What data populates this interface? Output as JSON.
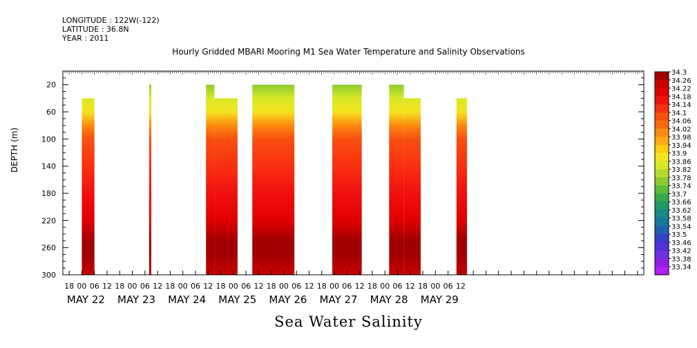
{
  "header": {
    "longitude": "LONGITUDE : 122W(-122)",
    "latitude": "LATITUDE : 36.8N",
    "year": "YEAR : 2011"
  },
  "title": "Hourly Gridded MBARI Mooring M1 Sea Water Temperature and Salinity Observations",
  "variable_label": "Sea Water Salinity",
  "chart_data": {
    "type": "heatmap",
    "title": "Hourly Gridded MBARI Mooring M1 Sea Water Temperature and Salinity Observations",
    "ylabel": "DEPTH (m)",
    "xlabel": "",
    "variable": "Sea Water Salinity",
    "y_range": [
      300,
      0
    ],
    "y_ticks": [
      20,
      60,
      100,
      140,
      180,
      220,
      260,
      300
    ],
    "x_range_hours": [
      -9,
      267
    ],
    "x_hour_ticks": [
      "18",
      "00",
      "06",
      "12",
      "18",
      "00",
      "06",
      "12",
      "18",
      "00",
      "06",
      "12",
      "18",
      "00",
      "06",
      "12",
      "18",
      "00",
      "06",
      "12",
      "18",
      "00",
      "06",
      "12",
      "18",
      "00",
      "06",
      "12",
      "18",
      "00",
      "06",
      "12"
    ],
    "x_day_labels": [
      "MAY 22",
      "MAY 23",
      "MAY 24",
      "MAY 25",
      "MAY 26",
      "MAY 27",
      "MAY 28",
      "MAY 29"
    ],
    "colorbar": {
      "levels": [
        "34.3",
        "34.26",
        "34.22",
        "34.18",
        "34.14",
        "34.1",
        "34.06",
        "34.02",
        "33.98",
        "33.94",
        "33.9",
        "33.86",
        "33.82",
        "33.78",
        "33.74",
        "33.7",
        "33.66",
        "33.62",
        "33.58",
        "33.54",
        "33.5",
        "33.46",
        "33.42",
        "33.38",
        "33.34"
      ],
      "colors": [
        "#a00000",
        "#c80000",
        "#e00000",
        "#f01010",
        "#f83010",
        "#f85010",
        "#fa6a10",
        "#fc8a10",
        "#fdab10",
        "#fccc10",
        "#f4e420",
        "#d8e828",
        "#b4dc30",
        "#8ccc30",
        "#5cbc38",
        "#38a848",
        "#209868",
        "#188888",
        "#187898",
        "#2060b0",
        "#3040c8",
        "#5030d8",
        "#7030e0",
        "#9020e8",
        "#b020f0"
      ]
    },
    "segments": [
      {
        "start_hour": 0,
        "end_hour": 6,
        "top_depth": 40
      },
      {
        "start_hour": 32,
        "end_hour": 33,
        "top_depth": 20
      },
      {
        "start_hour": 59,
        "end_hour": 63,
        "top_depth": 20
      },
      {
        "start_hour": 63,
        "end_hour": 74,
        "top_depth": 40
      },
      {
        "start_hour": 81,
        "end_hour": 101,
        "top_depth": 20
      },
      {
        "start_hour": 119,
        "end_hour": 133,
        "top_depth": 20
      },
      {
        "start_hour": 146,
        "end_hour": 153,
        "top_depth": 20
      },
      {
        "start_hour": 153,
        "end_hour": 161,
        "top_depth": 40
      },
      {
        "start_hour": 178,
        "end_hour": 183,
        "top_depth": 40
      }
    ],
    "depth_profile": [
      {
        "depth": 20,
        "salinity": 33.74
      },
      {
        "depth": 40,
        "salinity": 33.82
      },
      {
        "depth": 60,
        "salinity": 33.88
      },
      {
        "depth": 80,
        "salinity": 34.0
      },
      {
        "depth": 100,
        "salinity": 34.06
      },
      {
        "depth": 140,
        "salinity": 34.13
      },
      {
        "depth": 180,
        "salinity": 34.14
      },
      {
        "depth": 220,
        "salinity": 34.2
      },
      {
        "depth": 250,
        "salinity": 34.29
      },
      {
        "depth": 270,
        "salinity": 34.26
      },
      {
        "depth": 300,
        "salinity": 34.22
      }
    ]
  }
}
